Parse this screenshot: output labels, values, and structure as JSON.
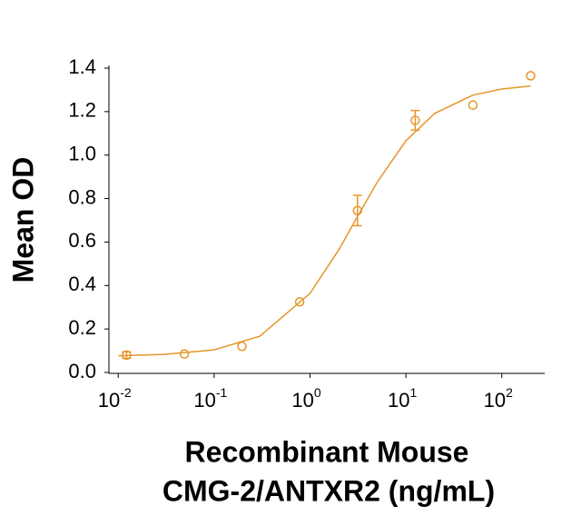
{
  "chart_data": {
    "type": "scatter",
    "ylabel": "Mean OD",
    "xlabel": [
      "Recombinant Mouse",
      "CMG-2/ANTXR2 (ng/mL)"
    ],
    "xscale": "log",
    "color": "#e6962a",
    "x": [
      0.0122,
      0.049,
      0.195,
      0.78,
      3.125,
      12.5,
      50,
      200
    ],
    "values": [
      0.08,
      0.085,
      0.12,
      0.325,
      0.745,
      1.16,
      1.23,
      1.365
    ],
    "errors": [
      0.015,
      null,
      null,
      null,
      0.07,
      0.045,
      null,
      null
    ],
    "curve": {
      "x": [
        0.01,
        0.03,
        0.1,
        0.3,
        1,
        2,
        3,
        5,
        10,
        20,
        50,
        100,
        200
      ],
      "values": [
        0.077,
        0.083,
        0.104,
        0.167,
        0.364,
        0.565,
        0.703,
        0.874,
        1.066,
        1.192,
        1.276,
        1.304,
        1.318
      ]
    },
    "xlim": [
      0.008,
      280
    ],
    "ylim": [
      0,
      1.4
    ],
    "xticks": [
      {
        "value": 0.01,
        "label": "10",
        "exponent": "-2"
      },
      {
        "value": 0.1,
        "label": "10",
        "exponent": "-1"
      },
      {
        "value": 1,
        "label": "10",
        "exponent": "0"
      },
      {
        "value": 10,
        "label": "10",
        "exponent": "1"
      },
      {
        "value": 100,
        "label": "10",
        "exponent": "2"
      }
    ],
    "yticks": [
      {
        "value": 0,
        "label": "0.0"
      },
      0.2,
      0.4,
      0.6,
      0.8,
      {
        "value": 1,
        "label": "1.0"
      },
      1.2,
      1.4
    ]
  }
}
